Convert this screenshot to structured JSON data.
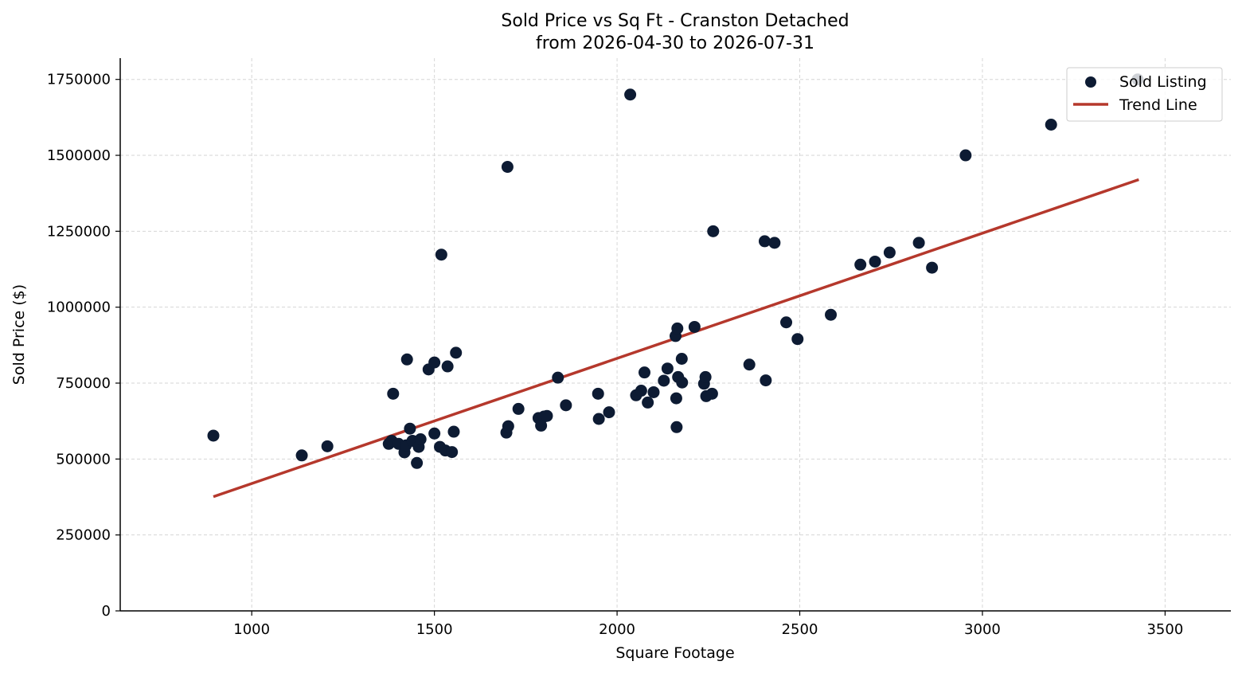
{
  "chart_data": {
    "type": "scatter",
    "title_line1": "Sold Price vs Sq Ft - Cranston Detached",
    "title_line2": "from 2026-04-30 to 2026-07-31",
    "xlabel": "Square Footage",
    "ylabel": "Sold Price ($)",
    "xlim": [
      640,
      3680
    ],
    "ylim": [
      0,
      1820000
    ],
    "x_ticks": [
      1000,
      1500,
      2000,
      2500,
      3000,
      3500
    ],
    "y_ticks": [
      0,
      250000,
      500000,
      750000,
      1000000,
      1250000,
      1500000,
      1750000
    ],
    "grid": true,
    "legend_position": "top-right",
    "legend": [
      "Sold Listing",
      "Trend Line"
    ],
    "colors": {
      "points": "#0d1b33",
      "trend": "#b5382c",
      "grid": "#d6d6d6"
    },
    "series": [
      {
        "name": "Sold Listing",
        "type": "scatter",
        "points": [
          [
            895,
            577000
          ],
          [
            1137,
            512000
          ],
          [
            1207,
            542000
          ],
          [
            1375,
            550000
          ],
          [
            1383,
            560000
          ],
          [
            1387,
            715000
          ],
          [
            1402,
            550000
          ],
          [
            1418,
            522000
          ],
          [
            1422,
            545000
          ],
          [
            1425,
            828000
          ],
          [
            1433,
            600000
          ],
          [
            1440,
            560000
          ],
          [
            1452,
            487000
          ],
          [
            1457,
            540000
          ],
          [
            1462,
            565000
          ],
          [
            1484,
            795000
          ],
          [
            1500,
            818000
          ],
          [
            1500,
            584000
          ],
          [
            1515,
            540000
          ],
          [
            1519,
            1173000
          ],
          [
            1530,
            528000
          ],
          [
            1536,
            805000
          ],
          [
            1548,
            523000
          ],
          [
            1553,
            590000
          ],
          [
            1559,
            850000
          ],
          [
            1697,
            587000
          ],
          [
            1700,
            1462000
          ],
          [
            1702,
            608000
          ],
          [
            1730,
            665000
          ],
          [
            1785,
            635000
          ],
          [
            1792,
            610000
          ],
          [
            1800,
            640000
          ],
          [
            1808,
            642000
          ],
          [
            1838,
            768000
          ],
          [
            1860,
            677000
          ],
          [
            1948,
            715000
          ],
          [
            1950,
            632000
          ],
          [
            1978,
            654000
          ],
          [
            2036,
            1700000
          ],
          [
            2052,
            710000
          ],
          [
            2066,
            725000
          ],
          [
            2075,
            785000
          ],
          [
            2084,
            686000
          ],
          [
            2100,
            720000
          ],
          [
            2128,
            758000
          ],
          [
            2138,
            798000
          ],
          [
            2160,
            905000
          ],
          [
            2162,
            700000
          ],
          [
            2163,
            605000
          ],
          [
            2165,
            930000
          ],
          [
            2167,
            770000
          ],
          [
            2177,
            830000
          ],
          [
            2178,
            752000
          ],
          [
            2212,
            935000
          ],
          [
            2238,
            748000
          ],
          [
            2242,
            770000
          ],
          [
            2244,
            707000
          ],
          [
            2260,
            715000
          ],
          [
            2263,
            1250000
          ],
          [
            2362,
            811000
          ],
          [
            2404,
            1217000
          ],
          [
            2407,
            759000
          ],
          [
            2431,
            1212000
          ],
          [
            2463,
            950000
          ],
          [
            2494,
            895000
          ],
          [
            2585,
            975000
          ],
          [
            2666,
            1140000
          ],
          [
            2706,
            1150000
          ],
          [
            2746,
            1180000
          ],
          [
            2826,
            1212000
          ],
          [
            2862,
            1130000
          ],
          [
            2954,
            1500000
          ],
          [
            3188,
            1601000
          ],
          [
            3425,
            1750000
          ]
        ]
      },
      {
        "name": "Trend Line",
        "type": "line",
        "points": [
          [
            895,
            376000
          ],
          [
            3428,
            1420000
          ]
        ]
      }
    ]
  }
}
